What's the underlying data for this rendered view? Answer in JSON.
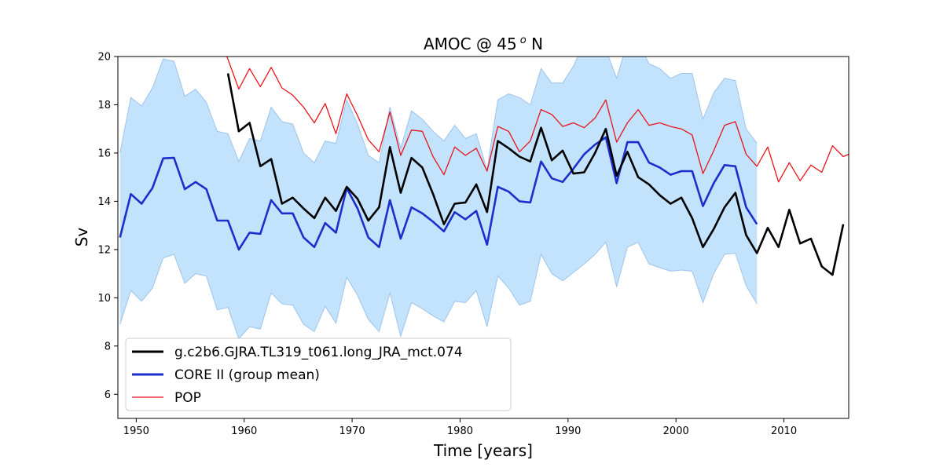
{
  "chart_data": {
    "type": "line",
    "title_main": "AMOC @ 45",
    "title_sup": "o",
    "title_end": " N",
    "xlabel": "Time [years]",
    "ylabel": "Sv",
    "xlim": [
      1948.3,
      2016.0
    ],
    "ylim": [
      5.0,
      20.0
    ],
    "xticks": [
      1950,
      1960,
      1970,
      1980,
      1990,
      2000,
      2010
    ],
    "yticks": [
      6,
      8,
      10,
      12,
      14,
      16,
      18,
      20
    ],
    "grid": false,
    "legend_position": "lower-left",
    "colors": {
      "band_fill": "#c2e3fb",
      "band_edge": "#9fc4ec",
      "core": "#1c2ecc",
      "experiment": "#000000",
      "pop": "#e8141b"
    },
    "legend": [
      {
        "label": "g.c2b6.GJRA.TL319_t061.long_JRA_mct.074",
        "color": "#000000",
        "width": 3
      },
      {
        "label": "CORE II (group mean)",
        "color": "#1c2ecc",
        "width": 3
      },
      {
        "label": "POP",
        "color": "#e8141b",
        "width": 1.3
      }
    ],
    "band": {
      "x": [
        1948.5,
        1949.5,
        1950.5,
        1951.5,
        1952.5,
        1953.5,
        1954.5,
        1955.5,
        1956.5,
        1957.5,
        1958.5,
        1959.5,
        1960.5,
        1961.5,
        1962.5,
        1963.5,
        1964.5,
        1965.5,
        1966.5,
        1967.5,
        1968.5,
        1969.5,
        1970.5,
        1971.5,
        1972.5,
        1973.5,
        1974.5,
        1975.5,
        1976.5,
        1977.5,
        1978.5,
        1979.5,
        1980.5,
        1981.5,
        1982.5,
        1983.5,
        1984.5,
        1985.5,
        1986.5,
        1987.5,
        1988.5,
        1989.5,
        1990.5,
        1991.5,
        1992.5,
        1993.5,
        1994.5,
        1995.5,
        1996.5,
        1997.5,
        1998.5,
        1999.5,
        2000.5,
        2001.5,
        2002.5,
        2003.5,
        2004.5,
        2005.5,
        2006.5,
        2007.5
      ],
      "upper": [
        16.0,
        18.3,
        17.95,
        18.7,
        19.9,
        19.8,
        18.35,
        18.65,
        18.1,
        16.9,
        16.8,
        15.65,
        16.6,
        16.5,
        17.9,
        17.3,
        17.2,
        16.0,
        15.6,
        16.5,
        16.4,
        18.2,
        17.2,
        15.9,
        15.6,
        17.9,
        16.2,
        17.75,
        17.4,
        16.9,
        16.5,
        17.15,
        16.6,
        16.8,
        15.3,
        18.2,
        18.45,
        18.3,
        18.0,
        19.5,
        18.9,
        18.9,
        19.6,
        20.6,
        20.4,
        20.3,
        19.1,
        20.6,
        20.6,
        19.7,
        19.5,
        19.1,
        19.3,
        19.3,
        17.4,
        18.5,
        19.1,
        19.0,
        17.0,
        16.4
      ],
      "lower": [
        8.9,
        10.3,
        9.85,
        10.4,
        11.65,
        11.8,
        10.6,
        11.0,
        10.9,
        9.5,
        9.6,
        8.3,
        8.8,
        8.7,
        10.2,
        9.75,
        9.7,
        8.9,
        8.6,
        9.65,
        8.95,
        10.85,
        10.1,
        9.1,
        8.6,
        10.2,
        8.4,
        9.8,
        9.55,
        9.25,
        9.0,
        9.85,
        9.8,
        10.3,
        8.8,
        10.9,
        10.4,
        9.7,
        9.85,
        11.8,
        11.0,
        10.7,
        11.05,
        11.4,
        11.8,
        12.3,
        10.45,
        12.1,
        12.3,
        11.4,
        11.25,
        11.1,
        11.15,
        11.1,
        9.8,
        11.0,
        11.8,
        11.85,
        10.5,
        9.75
      ]
    },
    "series": [
      {
        "name": "CORE II (group mean)",
        "x": [
          1948.5,
          1949.5,
          1950.5,
          1951.5,
          1952.5,
          1953.5,
          1954.5,
          1955.5,
          1956.5,
          1957.5,
          1958.5,
          1959.5,
          1960.5,
          1961.5,
          1962.5,
          1963.5,
          1964.5,
          1965.5,
          1966.5,
          1967.5,
          1968.5,
          1969.5,
          1970.5,
          1971.5,
          1972.5,
          1973.5,
          1974.5,
          1975.5,
          1976.5,
          1977.5,
          1978.5,
          1979.5,
          1980.5,
          1981.5,
          1982.5,
          1983.5,
          1984.5,
          1985.5,
          1986.5,
          1987.5,
          1988.5,
          1989.5,
          1990.5,
          1991.5,
          1992.5,
          1993.5,
          1994.5,
          1995.5,
          1996.5,
          1997.5,
          1998.5,
          1999.5,
          2000.5,
          2001.5,
          2002.5,
          2003.5,
          2004.5,
          2005.5,
          2006.5,
          2007.5
        ],
        "y": [
          12.5,
          14.3,
          13.9,
          14.55,
          15.78,
          15.8,
          14.5,
          14.8,
          14.5,
          13.2,
          13.2,
          12.0,
          12.7,
          12.65,
          14.05,
          13.5,
          13.5,
          12.5,
          12.1,
          13.1,
          12.7,
          14.55,
          13.7,
          12.5,
          12.1,
          14.05,
          12.45,
          13.75,
          13.5,
          13.15,
          12.75,
          13.55,
          13.25,
          13.6,
          12.2,
          14.6,
          14.4,
          14.0,
          13.95,
          15.65,
          14.95,
          14.8,
          15.35,
          15.95,
          16.35,
          16.65,
          14.75,
          16.45,
          16.45,
          15.6,
          15.4,
          15.1,
          15.25,
          15.25,
          13.8,
          14.75,
          15.5,
          15.45,
          13.75,
          13.05
        ],
        "color": "#1c2ecc"
      },
      {
        "name": "g.c2b6.GJRA.TL319_t061.long_JRA_mct.074",
        "x": [
          1958.5,
          1959.5,
          1960.5,
          1961.5,
          1962.5,
          1963.5,
          1964.5,
          1965.5,
          1966.5,
          1967.5,
          1968.5,
          1969.5,
          1970.5,
          1971.5,
          1972.5,
          1973.5,
          1974.5,
          1975.5,
          1976.5,
          1977.5,
          1978.5,
          1979.5,
          1980.5,
          1981.5,
          1982.5,
          1983.5,
          1984.5,
          1985.5,
          1986.5,
          1987.5,
          1988.5,
          1989.5,
          1990.5,
          1991.5,
          1992.5,
          1993.5,
          1994.5,
          1995.5,
          1996.5,
          1997.5,
          1998.5,
          1999.5,
          2000.5,
          2001.5,
          2002.5,
          2003.5,
          2004.5,
          2005.5,
          2006.5,
          2007.5,
          2008.5,
          2009.5,
          2010.5,
          2011.5,
          2012.5,
          2013.5,
          2014.5,
          2015.5
        ],
        "y": [
          19.3,
          16.9,
          17.25,
          15.45,
          15.75,
          13.9,
          14.15,
          13.7,
          13.3,
          14.15,
          13.6,
          14.6,
          14.1,
          13.2,
          13.75,
          16.25,
          14.35,
          15.8,
          15.4,
          14.3,
          13.05,
          13.9,
          13.95,
          14.7,
          13.55,
          16.5,
          16.2,
          15.85,
          15.65,
          17.05,
          15.7,
          16.1,
          15.15,
          15.2,
          16.0,
          17.0,
          15.05,
          16.05,
          15.0,
          14.7,
          14.25,
          13.9,
          14.15,
          13.3,
          12.1,
          12.85,
          13.75,
          14.35,
          12.6,
          11.85,
          12.9,
          12.1,
          13.65,
          12.25,
          12.45,
          11.3,
          10.95,
          13.05
        ],
        "color": "#000000"
      },
      {
        "name": "POP",
        "x": [
          1958.0,
          1959.5,
          1960.5,
          1961.5,
          1962.5,
          1963.5,
          1964.5,
          1965.5,
          1966.5,
          1967.5,
          1968.5,
          1969.5,
          1970.5,
          1971.5,
          1972.5,
          1973.5,
          1974.5,
          1975.5,
          1976.5,
          1977.5,
          1978.5,
          1979.5,
          1980.5,
          1981.5,
          1982.5,
          1983.5,
          1984.5,
          1985.5,
          1986.5,
          1987.5,
          1988.5,
          1989.5,
          1990.5,
          1991.5,
          1992.5,
          1993.5,
          1994.5,
          1995.5,
          1996.5,
          1997.5,
          1998.5,
          1999.5,
          2000.5,
          2001.5,
          2002.5,
          2003.5,
          2004.5,
          2005.5,
          2006.5,
          2007.5,
          2008.5,
          2009.5,
          2010.5,
          2011.5,
          2012.5,
          2013.5,
          2014.5,
          2015.5,
          2016.0
        ],
        "y": [
          20.5,
          18.65,
          19.5,
          18.75,
          19.55,
          18.7,
          18.4,
          17.9,
          17.25,
          18.05,
          16.8,
          18.45,
          17.55,
          16.55,
          16.05,
          17.7,
          15.9,
          16.95,
          16.9,
          15.85,
          15.1,
          16.25,
          15.9,
          16.2,
          15.25,
          17.1,
          16.9,
          16.05,
          16.5,
          17.8,
          17.6,
          17.1,
          17.25,
          17.05,
          17.45,
          18.2,
          16.45,
          17.25,
          17.8,
          17.15,
          17.25,
          17.1,
          17.0,
          16.75,
          15.15,
          16.1,
          17.15,
          17.3,
          15.95,
          15.45,
          16.25,
          14.8,
          15.6,
          14.85,
          15.5,
          15.2,
          16.3,
          15.85,
          15.95
        ],
        "color": "#e8141b"
      }
    ]
  }
}
